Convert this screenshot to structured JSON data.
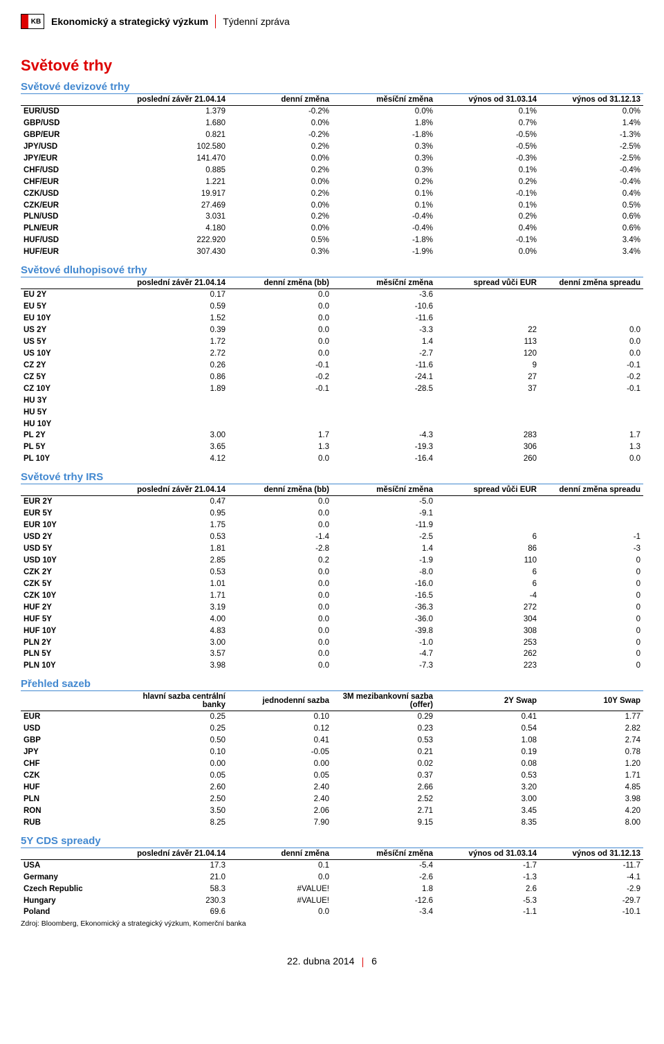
{
  "header": {
    "logo_text": "KB",
    "main": "Ekonomický a strategický výzkum",
    "sub": "Týdenní zpráva"
  },
  "page_title": "Světové trhy",
  "footer_date": "22. dubna 2014",
  "footer_page": "6",
  "source_line": "Zdroj: Bloomberg, Ekonomický a strategický výzkum, Komerční banka",
  "fx": {
    "title": "Světové devizové trhy",
    "columns": [
      "",
      "poslední závěr 21.04.14",
      "denní změna",
      "měsíční změna",
      "výnos od 31.03.14",
      "výnos od 31.12.13"
    ],
    "rows": [
      [
        "EUR/USD",
        "1.379",
        "-0.2%",
        "0.0%",
        "0.1%",
        "0.0%"
      ],
      [
        "GBP/USD",
        "1.680",
        "0.0%",
        "1.8%",
        "0.7%",
        "1.4%"
      ],
      [
        "GBP/EUR",
        "0.821",
        "-0.2%",
        "-1.8%",
        "-0.5%",
        "-1.3%"
      ],
      [
        "JPY/USD",
        "102.580",
        "0.2%",
        "0.3%",
        "-0.5%",
        "-2.5%"
      ],
      [
        "JPY/EUR",
        "141.470",
        "0.0%",
        "0.3%",
        "-0.3%",
        "-2.5%"
      ],
      [
        "CHF/USD",
        "0.885",
        "0.2%",
        "0.3%",
        "0.1%",
        "-0.4%"
      ],
      [
        "CHF/EUR",
        "1.221",
        "0.0%",
        "0.2%",
        "0.2%",
        "-0.4%"
      ],
      [
        "CZK/USD",
        "19.917",
        "0.2%",
        "0.1%",
        "-0.1%",
        "0.4%"
      ],
      [
        "CZK/EUR",
        "27.469",
        "0.0%",
        "0.1%",
        "0.1%",
        "0.5%"
      ],
      [
        "PLN/USD",
        "3.031",
        "0.2%",
        "-0.4%",
        "0.2%",
        "0.6%"
      ],
      [
        "PLN/EUR",
        "4.180",
        "0.0%",
        "-0.4%",
        "0.4%",
        "0.6%"
      ],
      [
        "HUF/USD",
        "222.920",
        "0.5%",
        "-1.8%",
        "-0.1%",
        "3.4%"
      ],
      [
        "HUF/EUR",
        "307.430",
        "0.3%",
        "-1.9%",
        "0.0%",
        "3.4%"
      ]
    ]
  },
  "bonds": {
    "title": "Světové dluhopisové trhy",
    "columns": [
      "",
      "poslední závěr 21.04.14",
      "denní změna (bb)",
      "měsíční změna",
      "spread vůči EUR",
      "denní změna spreadu"
    ],
    "rows": [
      [
        "EU 2Y",
        "0.17",
        "0.0",
        "-3.6",
        "",
        ""
      ],
      [
        "EU 5Y",
        "0.59",
        "0.0",
        "-10.6",
        "",
        ""
      ],
      [
        "EU 10Y",
        "1.52",
        "0.0",
        "-11.6",
        "",
        ""
      ],
      [
        "US 2Y",
        "0.39",
        "0.0",
        "-3.3",
        "22",
        "0.0"
      ],
      [
        "US 5Y",
        "1.72",
        "0.0",
        "1.4",
        "113",
        "0.0"
      ],
      [
        "US 10Y",
        "2.72",
        "0.0",
        "-2.7",
        "120",
        "0.0"
      ],
      [
        "CZ 2Y",
        "0.26",
        "-0.1",
        "-11.6",
        "9",
        "-0.1"
      ],
      [
        "CZ 5Y",
        "0.86",
        "-0.2",
        "-24.1",
        "27",
        "-0.2"
      ],
      [
        "CZ 10Y",
        "1.89",
        "-0.1",
        "-28.5",
        "37",
        "-0.1"
      ],
      [
        "HU 3Y",
        "",
        "",
        "",
        "",
        ""
      ],
      [
        "HU 5Y",
        "",
        "",
        "",
        "",
        ""
      ],
      [
        "HU 10Y",
        "",
        "",
        "",
        "",
        ""
      ],
      [
        "PL 2Y",
        "3.00",
        "1.7",
        "-4.3",
        "283",
        "1.7"
      ],
      [
        "PL 5Y",
        "3.65",
        "1.3",
        "-19.3",
        "306",
        "1.3"
      ],
      [
        "PL 10Y",
        "4.12",
        "0.0",
        "-16.4",
        "260",
        "0.0"
      ]
    ]
  },
  "irs": {
    "title": "Světové trhy IRS",
    "columns": [
      "",
      "poslední závěr 21.04.14",
      "denní změna (bb)",
      "měsíční změna",
      "spread vůči EUR",
      "denní změna spreadu"
    ],
    "rows": [
      [
        "EUR 2Y",
        "0.47",
        "0.0",
        "-5.0",
        "",
        ""
      ],
      [
        "EUR 5Y",
        "0.95",
        "0.0",
        "-9.1",
        "",
        ""
      ],
      [
        "EUR 10Y",
        "1.75",
        "0.0",
        "-11.9",
        "",
        ""
      ],
      [
        "USD 2Y",
        "0.53",
        "-1.4",
        "-2.5",
        "6",
        "-1"
      ],
      [
        "USD 5Y",
        "1.81",
        "-2.8",
        "1.4",
        "86",
        "-3"
      ],
      [
        "USD 10Y",
        "2.85",
        "0.2",
        "-1.9",
        "110",
        "0"
      ],
      [
        "CZK 2Y",
        "0.53",
        "0.0",
        "-8.0",
        "6",
        "0"
      ],
      [
        "CZK 5Y",
        "1.01",
        "0.0",
        "-16.0",
        "6",
        "0"
      ],
      [
        "CZK 10Y",
        "1.71",
        "0.0",
        "-16.5",
        "-4",
        "0"
      ],
      [
        "HUF 2Y",
        "3.19",
        "0.0",
        "-36.3",
        "272",
        "0"
      ],
      [
        "HUF 5Y",
        "4.00",
        "0.0",
        "-36.0",
        "304",
        "0"
      ],
      [
        "HUF 10Y",
        "4.83",
        "0.0",
        "-39.8",
        "308",
        "0"
      ],
      [
        "PLN 2Y",
        "3.00",
        "0.0",
        "-1.0",
        "253",
        "0"
      ],
      [
        "PLN 5Y",
        "3.57",
        "0.0",
        "-4.7",
        "262",
        "0"
      ],
      [
        "PLN 10Y",
        "3.98",
        "0.0",
        "-7.3",
        "223",
        "0"
      ]
    ]
  },
  "rates": {
    "title": "Přehled sazeb",
    "columns": [
      "",
      "hlavní sazba centrální banky",
      "jednodenní sazba",
      "3M mezibankovní sazba (offer)",
      "2Y Swap",
      "10Y Swap"
    ],
    "rows": [
      [
        "EUR",
        "0.25",
        "0.10",
        "0.29",
        "0.41",
        "1.77"
      ],
      [
        "USD",
        "0.25",
        "0.12",
        "0.23",
        "0.54",
        "2.82"
      ],
      [
        "GBP",
        "0.50",
        "0.41",
        "0.53",
        "1.08",
        "2.74"
      ],
      [
        "JPY",
        "0.10",
        "-0.05",
        "0.21",
        "0.19",
        "0.78"
      ],
      [
        "CHF",
        "0.00",
        "0.00",
        "0.02",
        "0.08",
        "1.20"
      ],
      [
        "CZK",
        "0.05",
        "0.05",
        "0.37",
        "0.53",
        "1.71"
      ],
      [
        "HUF",
        "2.60",
        "2.40",
        "2.66",
        "3.20",
        "4.85"
      ],
      [
        "PLN",
        "2.50",
        "2.40",
        "2.52",
        "3.00",
        "3.98"
      ],
      [
        "RON",
        "3.50",
        "2.06",
        "2.71",
        "3.45",
        "4.20"
      ],
      [
        "RUB",
        "8.25",
        "7.90",
        "9.15",
        "8.35",
        "8.00"
      ]
    ]
  },
  "cds": {
    "title": "5Y CDS spready",
    "columns": [
      "",
      "poslední závěr 21.04.14",
      "denní změna",
      "měsíční změna",
      "výnos od 31.03.14",
      "výnos od 31.12.13"
    ],
    "rows": [
      [
        "USA",
        "17.3",
        "0.1",
        "-5.4",
        "-1.7",
        "-11.7"
      ],
      [
        "Germany",
        "21.0",
        "0.0",
        "-2.6",
        "-1.3",
        "-4.1"
      ],
      [
        "Czech Republic",
        "58.3",
        "#VALUE!",
        "1.8",
        "2.6",
        "-2.9"
      ],
      [
        "Hungary",
        "230.3",
        "#VALUE!",
        "-12.6",
        "-5.3",
        "-29.7"
      ],
      [
        "Poland",
        "69.6",
        "0.0",
        "-3.4",
        "-1.1",
        "-10.1"
      ]
    ]
  }
}
